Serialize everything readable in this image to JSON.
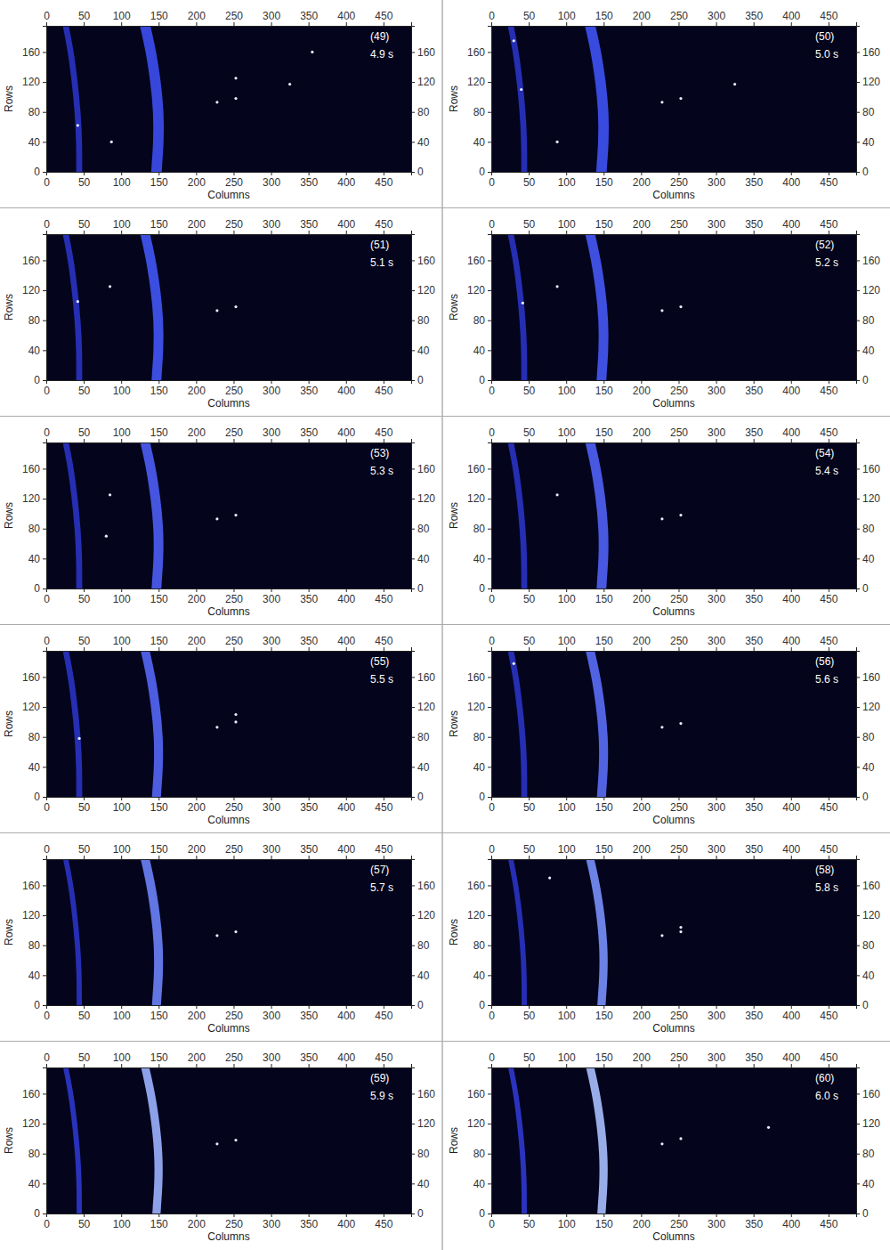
{
  "chart_data": [
    {
      "type": "heatmap",
      "label": "(49)",
      "time": "4.9 s",
      "xlabel": "Columns",
      "ylabel": "Rows",
      "xlim": [
        0,
        487
      ],
      "ylim": [
        0,
        195
      ],
      "xticks": [
        0,
        50,
        100,
        150,
        200,
        250,
        300,
        350,
        400,
        450
      ],
      "yticks": [
        0,
        40,
        80,
        120,
        160
      ],
      "bands": [
        {
          "rows": [
            0,
            40,
            80,
            120,
            160,
            195
          ],
          "columns": [
            44,
            44,
            42,
            38,
            33,
            26
          ],
          "width": 8,
          "color": "#2a33c4"
        },
        {
          "rows": [
            0,
            40,
            80,
            120,
            160,
            195
          ],
          "columns": [
            147,
            150,
            150,
            146,
            140,
            132
          ],
          "width": 14,
          "color": "#3d4ff2"
        }
      ],
      "spots": {
        "x": [
          253,
          228,
          253,
          325,
          355,
          87,
          42
        ],
        "y": [
          98,
          93,
          125,
          117,
          160,
          40,
          62
        ]
      }
    },
    {
      "type": "heatmap",
      "label": "(50)",
      "time": "5.0 s",
      "xlabel": "Columns",
      "ylabel": "Rows",
      "xlim": [
        0,
        487
      ],
      "ylim": [
        0,
        195
      ],
      "xticks": [
        0,
        50,
        100,
        150,
        200,
        250,
        300,
        350,
        400,
        450
      ],
      "yticks": [
        0,
        40,
        80,
        120,
        160
      ],
      "bands": [
        {
          "rows": [
            0,
            40,
            80,
            120,
            160,
            195
          ],
          "columns": [
            44,
            44,
            42,
            38,
            33,
            26
          ],
          "width": 8,
          "color": "#2a33c4"
        },
        {
          "rows": [
            0,
            40,
            80,
            120,
            160,
            195
          ],
          "columns": [
            147,
            150,
            150,
            146,
            140,
            132
          ],
          "width": 14,
          "color": "#3f52f4"
        }
      ],
      "spots": {
        "x": [
          253,
          228,
          325,
          88,
          40,
          30
        ],
        "y": [
          98,
          93,
          117,
          40,
          110,
          175
        ]
      }
    },
    {
      "type": "heatmap",
      "label": "(51)",
      "time": "5.1 s",
      "xlabel": "Columns",
      "ylabel": "Rows",
      "xlim": [
        0,
        487
      ],
      "ylim": [
        0,
        195
      ],
      "xticks": [
        0,
        50,
        100,
        150,
        200,
        250,
        300,
        350,
        400,
        450
      ],
      "yticks": [
        0,
        40,
        80,
        120,
        160
      ],
      "bands": [
        {
          "rows": [
            0,
            40,
            80,
            120,
            160,
            195
          ],
          "columns": [
            44,
            44,
            42,
            38,
            33,
            26
          ],
          "width": 8,
          "color": "#2a33c4"
        },
        {
          "rows": [
            0,
            40,
            80,
            120,
            160,
            195
          ],
          "columns": [
            147,
            150,
            150,
            146,
            140,
            132
          ],
          "width": 13,
          "color": "#4356f5"
        }
      ],
      "spots": {
        "x": [
          253,
          228,
          42,
          85
        ],
        "y": [
          98,
          93,
          105,
          125
        ]
      }
    },
    {
      "type": "heatmap",
      "label": "(52)",
      "time": "5.2 s",
      "xlabel": "Columns",
      "ylabel": "Rows",
      "xlim": [
        0,
        487
      ],
      "ylim": [
        0,
        195
      ],
      "xticks": [
        0,
        50,
        100,
        150,
        200,
        250,
        300,
        350,
        400,
        450
      ],
      "yticks": [
        0,
        40,
        80,
        120,
        160
      ],
      "bands": [
        {
          "rows": [
            0,
            40,
            80,
            120,
            160,
            195
          ],
          "columns": [
            44,
            44,
            42,
            38,
            33,
            26
          ],
          "width": 8,
          "color": "#2a33c4"
        },
        {
          "rows": [
            0,
            40,
            80,
            120,
            160,
            195
          ],
          "columns": [
            147,
            150,
            150,
            146,
            140,
            132
          ],
          "width": 13,
          "color": "#4658f5"
        }
      ],
      "spots": {
        "x": [
          253,
          228,
          42,
          88
        ],
        "y": [
          98,
          93,
          103,
          125
        ]
      }
    },
    {
      "type": "heatmap",
      "label": "(53)",
      "time": "5.3 s",
      "xlabel": "Columns",
      "ylabel": "Rows",
      "xlim": [
        0,
        487
      ],
      "ylim": [
        0,
        195
      ],
      "xticks": [
        0,
        50,
        100,
        150,
        200,
        250,
        300,
        350,
        400,
        450
      ],
      "yticks": [
        0,
        40,
        80,
        120,
        160
      ],
      "bands": [
        {
          "rows": [
            0,
            40,
            80,
            120,
            160,
            195
          ],
          "columns": [
            44,
            44,
            42,
            38,
            33,
            26
          ],
          "width": 8,
          "color": "#2a33c4"
        },
        {
          "rows": [
            0,
            40,
            80,
            120,
            160,
            195
          ],
          "columns": [
            147,
            150,
            150,
            146,
            140,
            132
          ],
          "width": 13,
          "color": "#4c5ef6"
        }
      ],
      "spots": {
        "x": [
          253,
          228,
          80,
          85
        ],
        "y": [
          98,
          93,
          70,
          125
        ]
      }
    },
    {
      "type": "heatmap",
      "label": "(54)",
      "time": "5.4 s",
      "xlabel": "Columns",
      "ylabel": "Rows",
      "xlim": [
        0,
        487
      ],
      "ylim": [
        0,
        195
      ],
      "xticks": [
        0,
        50,
        100,
        150,
        200,
        250,
        300,
        350,
        400,
        450
      ],
      "yticks": [
        0,
        40,
        80,
        120,
        160
      ],
      "bands": [
        {
          "rows": [
            0,
            40,
            80,
            120,
            160,
            195
          ],
          "columns": [
            44,
            44,
            42,
            38,
            33,
            26
          ],
          "width": 8,
          "color": "#2a33c4"
        },
        {
          "rows": [
            0,
            40,
            80,
            120,
            160,
            195
          ],
          "columns": [
            147,
            150,
            150,
            146,
            140,
            132
          ],
          "width": 13,
          "color": "#5062f6"
        }
      ],
      "spots": {
        "x": [
          253,
          228,
          88
        ],
        "y": [
          98,
          93,
          125
        ]
      }
    },
    {
      "type": "heatmap",
      "label": "(55)",
      "time": "5.5 s",
      "xlabel": "Columns",
      "ylabel": "Rows",
      "xlim": [
        0,
        487
      ],
      "ylim": [
        0,
        195
      ],
      "xticks": [
        0,
        50,
        100,
        150,
        200,
        250,
        300,
        350,
        400,
        450
      ],
      "yticks": [
        0,
        40,
        80,
        120,
        160
      ],
      "bands": [
        {
          "rows": [
            0,
            40,
            80,
            120,
            160,
            195
          ],
          "columns": [
            44,
            44,
            42,
            38,
            33,
            26
          ],
          "width": 8,
          "color": "#2a33c4"
        },
        {
          "rows": [
            0,
            40,
            80,
            120,
            160,
            195
          ],
          "columns": [
            147,
            150,
            150,
            146,
            140,
            132
          ],
          "width": 12,
          "color": "#5567f7"
        }
      ],
      "spots": {
        "x": [
          253,
          228,
          253,
          44
        ],
        "y": [
          100,
          93,
          110,
          78
        ]
      }
    },
    {
      "type": "heatmap",
      "label": "(56)",
      "time": "5.6 s",
      "xlabel": "Columns",
      "ylabel": "Rows",
      "xlim": [
        0,
        487
      ],
      "ylim": [
        0,
        195
      ],
      "xticks": [
        0,
        50,
        100,
        150,
        200,
        250,
        300,
        350,
        400,
        450
      ],
      "yticks": [
        0,
        40,
        80,
        120,
        160
      ],
      "bands": [
        {
          "rows": [
            0,
            40,
            80,
            120,
            160,
            195
          ],
          "columns": [
            44,
            44,
            42,
            38,
            33,
            26
          ],
          "width": 8,
          "color": "#2a33c4"
        },
        {
          "rows": [
            0,
            40,
            80,
            120,
            160,
            195
          ],
          "columns": [
            147,
            150,
            150,
            146,
            140,
            132
          ],
          "width": 12,
          "color": "#5b6ef8"
        }
      ],
      "spots": {
        "x": [
          253,
          228,
          30
        ],
        "y": [
          98,
          93,
          178
        ]
      }
    },
    {
      "type": "heatmap",
      "label": "(57)",
      "time": "5.7 s",
      "xlabel": "Columns",
      "ylabel": "Rows",
      "xlim": [
        0,
        487
      ],
      "ylim": [
        0,
        195
      ],
      "xticks": [
        0,
        50,
        100,
        150,
        200,
        250,
        300,
        350,
        400,
        450
      ],
      "yticks": [
        0,
        40,
        80,
        120,
        160
      ],
      "bands": [
        {
          "rows": [
            0,
            40,
            80,
            120,
            160,
            195
          ],
          "columns": [
            44,
            44,
            42,
            38,
            33,
            26
          ],
          "width": 7,
          "color": "#2a33c4"
        },
        {
          "rows": [
            0,
            40,
            80,
            120,
            160,
            195
          ],
          "columns": [
            147,
            150,
            150,
            146,
            140,
            132
          ],
          "width": 12,
          "color": "#6c82fa"
        }
      ],
      "spots": {
        "x": [
          253,
          228
        ],
        "y": [
          98,
          93
        ]
      }
    },
    {
      "type": "heatmap",
      "label": "(58)",
      "time": "5.8 s",
      "xlabel": "Columns",
      "ylabel": "Rows",
      "xlim": [
        0,
        487
      ],
      "ylim": [
        0,
        195
      ],
      "xticks": [
        0,
        50,
        100,
        150,
        200,
        250,
        300,
        350,
        400,
        450
      ],
      "yticks": [
        0,
        40,
        80,
        120,
        160
      ],
      "bands": [
        {
          "rows": [
            0,
            40,
            80,
            120,
            160,
            195
          ],
          "columns": [
            44,
            44,
            42,
            38,
            33,
            26
          ],
          "width": 7,
          "color": "#2a33c4"
        },
        {
          "rows": [
            0,
            40,
            80,
            120,
            160,
            195
          ],
          "columns": [
            147,
            150,
            150,
            146,
            140,
            132
          ],
          "width": 11,
          "color": "#7890fb"
        }
      ],
      "spots": {
        "x": [
          253,
          228,
          253,
          78
        ],
        "y": [
          98,
          93,
          104,
          170
        ]
      }
    },
    {
      "type": "heatmap",
      "label": "(59)",
      "time": "5.9 s",
      "xlabel": "Columns",
      "ylabel": "Rows",
      "xlim": [
        0,
        487
      ],
      "ylim": [
        0,
        195
      ],
      "xticks": [
        0,
        50,
        100,
        150,
        200,
        250,
        300,
        350,
        400,
        450
      ],
      "yticks": [
        0,
        40,
        80,
        120,
        160
      ],
      "bands": [
        {
          "rows": [
            0,
            40,
            80,
            120,
            160,
            195
          ],
          "columns": [
            44,
            44,
            42,
            38,
            33,
            26
          ],
          "width": 7,
          "color": "#2d37cc"
        },
        {
          "rows": [
            0,
            40,
            80,
            120,
            160,
            195
          ],
          "columns": [
            147,
            150,
            150,
            146,
            140,
            132
          ],
          "width": 11,
          "color": "#9cb2ff"
        }
      ],
      "spots": {
        "x": [
          253,
          228
        ],
        "y": [
          98,
          93
        ]
      }
    },
    {
      "type": "heatmap",
      "label": "(60)",
      "time": "6.0 s",
      "xlabel": "Columns",
      "ylabel": "Rows",
      "xlim": [
        0,
        487
      ],
      "ylim": [
        0,
        195
      ],
      "xticks": [
        0,
        50,
        100,
        150,
        200,
        250,
        300,
        350,
        400,
        450
      ],
      "yticks": [
        0,
        40,
        80,
        120,
        160
      ],
      "bands": [
        {
          "rows": [
            0,
            40,
            80,
            120,
            160,
            195
          ],
          "columns": [
            44,
            44,
            42,
            38,
            33,
            26
          ],
          "width": 7,
          "color": "#3039d0"
        },
        {
          "rows": [
            0,
            40,
            80,
            120,
            160,
            195
          ],
          "columns": [
            147,
            150,
            150,
            146,
            140,
            132
          ],
          "width": 11,
          "color": "#a8c0ff"
        }
      ],
      "spots": {
        "x": [
          253,
          228,
          370
        ],
        "y": [
          100,
          93,
          115
        ]
      }
    }
  ]
}
